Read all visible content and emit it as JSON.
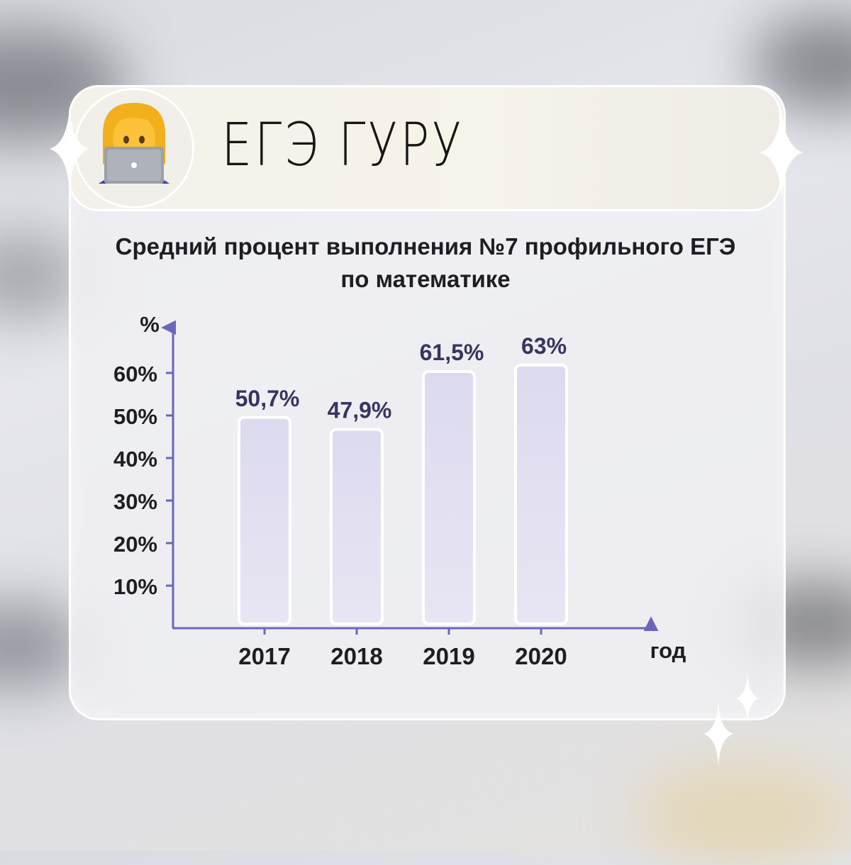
{
  "brand": {
    "name": "ЕГЭ ГУРУ",
    "avatar_icon": "woman-technologist-emoji-icon",
    "accent": "#6b66b8"
  },
  "chart_data": {
    "type": "bar",
    "title": "Средний процент выполнения №7 профильного ЕГЭ по математике",
    "categories": [
      "2017",
      "2018",
      "2019",
      "2020"
    ],
    "values": [
      50.7,
      47.9,
      61.5,
      63
    ],
    "data_labels": [
      "50,7%",
      "47,9%",
      "61,5%",
      "63%"
    ],
    "ylabel": "%",
    "xlabel": "год",
    "y_ticks": [
      10,
      20,
      30,
      40,
      50,
      60
    ],
    "y_tick_labels": [
      "10%",
      "20%",
      "30%",
      "40%",
      "50%",
      "60%"
    ],
    "ylim": [
      0,
      70
    ],
    "grid": false,
    "colors": {
      "axis": "#6b66b8",
      "bar_fill": "#e3e1f0",
      "bar_border": "#ffffff",
      "label": "#363561",
      "tick_text": "#1d1d22"
    }
  }
}
